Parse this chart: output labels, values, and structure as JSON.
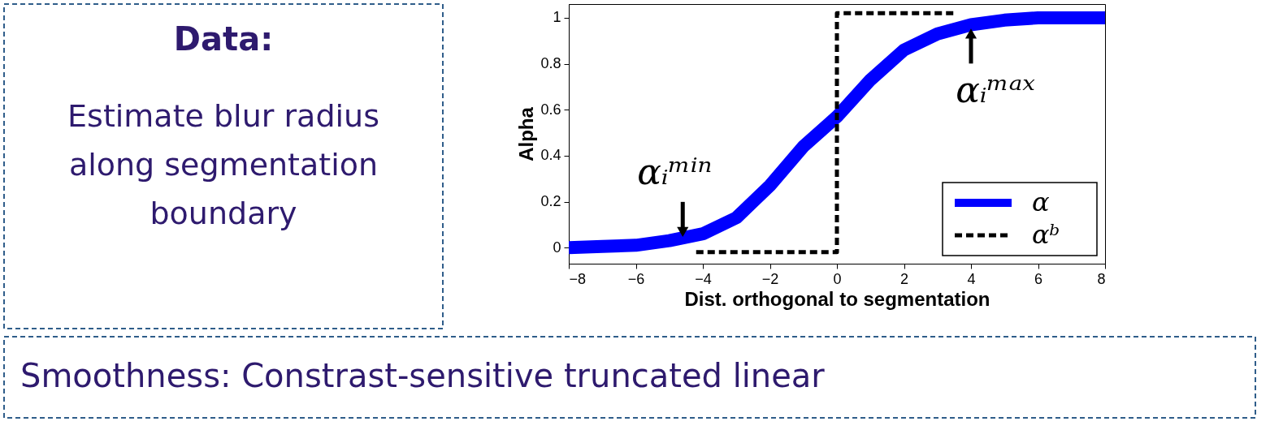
{
  "chart_data": {
    "type": "line",
    "title": "Data:",
    "subtitle": "Estimate blur radius along segmentation boundary",
    "xlabel": "Dist. orthogonal to segmentation",
    "ylabel": "Alpha",
    "xlim": [
      -8,
      8
    ],
    "ylim": [
      -0.07,
      1.06
    ],
    "xticks": [
      -8,
      -6,
      -4,
      -2,
      0,
      2,
      4,
      6,
      8
    ],
    "yticks": [
      0,
      0.2,
      0.4,
      0.6,
      0.8,
      1
    ],
    "grid": false,
    "legend": "bottom right",
    "series": [
      {
        "name": "α",
        "color": "#0000ff",
        "line_style": "solid",
        "x": [
          -8,
          -7,
          -6,
          -5,
          -4,
          -3,
          -2,
          -1,
          0,
          1,
          2,
          3,
          4,
          5,
          6,
          7,
          8
        ],
        "values": [
          0.0,
          0.005,
          0.01,
          0.03,
          0.06,
          0.13,
          0.27,
          0.44,
          0.57,
          0.73,
          0.86,
          0.93,
          0.97,
          0.99,
          1.0,
          1.0,
          1.0
        ]
      },
      {
        "name": "αᵇ",
        "color": "#000000",
        "line_style": "dashed",
        "x": [
          -4.2,
          0,
          0,
          3.5
        ],
        "values": [
          -0.02,
          -0.02,
          1.02,
          1.02
        ]
      }
    ],
    "annotations": [
      {
        "text": "αᵢᵐⁱⁿ",
        "x": -4.6,
        "y": 0.04
      },
      {
        "text": "αᵢᵐᵃˣ",
        "x": 4,
        "y": 0.96
      },
      "Smoothness: Constrast-sensitive truncated linear"
    ]
  }
}
